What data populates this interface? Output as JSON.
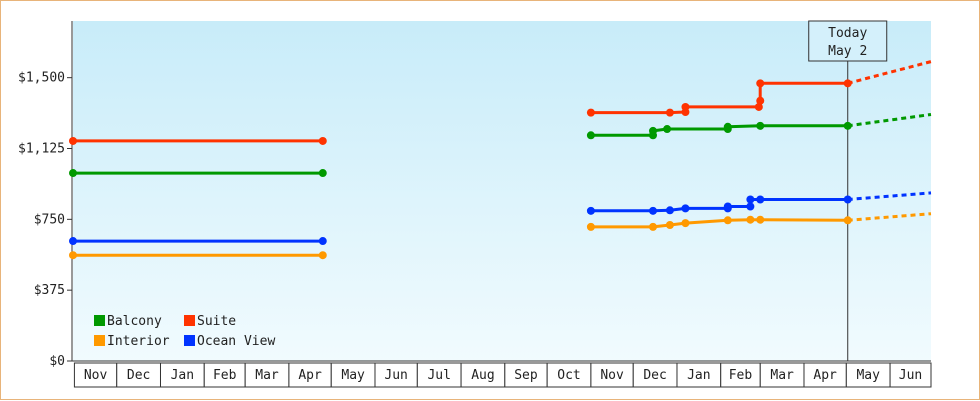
{
  "chart_data": {
    "type": "line",
    "x_unit": "date",
    "ylim": [
      0,
      1800
    ],
    "y_ticks": [
      {
        "value": 0,
        "label": "$0"
      },
      {
        "value": 375,
        "label": "$375"
      },
      {
        "value": 750,
        "label": "$750"
      },
      {
        "value": 1125,
        "label": "$1,125"
      },
      {
        "value": 1500,
        "label": "$1,500"
      }
    ],
    "x_range": [
      "2023-10-31",
      "2025-06-30"
    ],
    "months": [
      {
        "label": "Nov",
        "start": "2023-11-01",
        "end": "2023-12-01"
      },
      {
        "label": "Dec",
        "start": "2023-12-01",
        "end": "2024-01-01"
      },
      {
        "label": "Jan",
        "start": "2024-01-01",
        "end": "2024-02-01"
      },
      {
        "label": "Feb",
        "start": "2024-02-01",
        "end": "2024-03-01"
      },
      {
        "label": "Mar",
        "start": "2024-03-01",
        "end": "2024-04-01"
      },
      {
        "label": "Apr",
        "start": "2024-04-01",
        "end": "2024-05-01"
      },
      {
        "label": "May",
        "start": "2024-05-01",
        "end": "2024-06-01"
      },
      {
        "label": "Jun",
        "start": "2024-06-01",
        "end": "2024-07-01"
      },
      {
        "label": "Jul",
        "start": "2024-07-01",
        "end": "2024-08-01"
      },
      {
        "label": "Aug",
        "start": "2024-08-01",
        "end": "2024-09-01"
      },
      {
        "label": "Sep",
        "start": "2024-09-01",
        "end": "2024-10-01"
      },
      {
        "label": "Oct",
        "start": "2024-10-01",
        "end": "2024-11-01"
      },
      {
        "label": "Nov",
        "start": "2024-11-01",
        "end": "2024-12-01"
      },
      {
        "label": "Dec",
        "start": "2024-12-01",
        "end": "2025-01-01"
      },
      {
        "label": "Jan",
        "start": "2025-01-01",
        "end": "2025-02-01"
      },
      {
        "label": "Feb",
        "start": "2025-02-01",
        "end": "2025-03-01"
      },
      {
        "label": "Mar",
        "start": "2025-03-01",
        "end": "2025-04-01"
      },
      {
        "label": "Apr",
        "start": "2025-04-01",
        "end": "2025-05-01"
      },
      {
        "label": "May",
        "start": "2025-05-01",
        "end": "2025-06-01"
      },
      {
        "label": "Jun",
        "start": "2025-06-01",
        "end": "2025-07-01"
      }
    ],
    "today": {
      "line1": "Today",
      "line2": "May 2",
      "date": "2025-05-02"
    },
    "series": [
      {
        "name": "Suite",
        "color": "#ff3300",
        "segments": [
          [
            [
              "2023-10-31",
              1165
            ],
            [
              "2024-04-25",
              1165
            ]
          ],
          [
            [
              "2024-11-01",
              1315
            ],
            [
              "2024-12-27",
              1315
            ],
            [
              "2025-01-07",
              1318
            ],
            [
              "2025-01-07",
              1345
            ],
            [
              "2025-02-28",
              1345
            ],
            [
              "2025-03-01",
              1378
            ],
            [
              "2025-03-01",
              1470
            ],
            [
              "2025-05-02",
              1470
            ]
          ]
        ],
        "projection": [
          [
            "2025-05-02",
            1470
          ],
          [
            "2025-06-30",
            1585
          ]
        ]
      },
      {
        "name": "Balcony",
        "color": "#009900",
        "segments": [
          [
            [
              "2023-10-31",
              995
            ],
            [
              "2024-04-25",
              995
            ]
          ],
          [
            [
              "2024-11-01",
              1195
            ],
            [
              "2024-12-15",
              1195
            ],
            [
              "2024-12-15",
              1218
            ],
            [
              "2024-12-25",
              1228
            ],
            [
              "2025-02-06",
              1228
            ],
            [
              "2025-02-06",
              1240
            ],
            [
              "2025-03-01",
              1245
            ],
            [
              "2025-05-02",
              1245
            ]
          ]
        ],
        "projection": [
          [
            "2025-05-02",
            1245
          ],
          [
            "2025-06-30",
            1305
          ]
        ]
      },
      {
        "name": "Ocean View",
        "color": "#0033ff",
        "segments": [
          [
            [
              "2023-10-31",
              635
            ],
            [
              "2024-04-25",
              635
            ]
          ],
          [
            [
              "2024-11-01",
              795
            ],
            [
              "2024-12-15",
              795
            ],
            [
              "2024-12-27",
              798
            ],
            [
              "2025-01-07",
              808
            ],
            [
              "2025-02-06",
              808
            ],
            [
              "2025-02-06",
              818
            ],
            [
              "2025-02-22",
              818
            ],
            [
              "2025-02-22",
              855
            ],
            [
              "2025-03-01",
              855
            ],
            [
              "2025-05-02",
              855
            ]
          ]
        ],
        "projection": [
          [
            "2025-05-02",
            855
          ],
          [
            "2025-06-30",
            890
          ]
        ]
      },
      {
        "name": "Interior",
        "color": "#ff9900",
        "segments": [
          [
            [
              "2023-10-31",
              560
            ],
            [
              "2024-04-25",
              560
            ]
          ],
          [
            [
              "2024-11-01",
              710
            ],
            [
              "2024-12-15",
              710
            ],
            [
              "2024-12-27",
              720
            ],
            [
              "2025-01-07",
              730
            ],
            [
              "2025-02-06",
              745
            ],
            [
              "2025-02-22",
              748
            ],
            [
              "2025-03-01",
              748
            ],
            [
              "2025-05-02",
              745
            ]
          ]
        ],
        "projection": [
          [
            "2025-05-02",
            745
          ],
          [
            "2025-06-30",
            780
          ]
        ]
      }
    ],
    "legend": {
      "placement": "bottom-left",
      "entries": [
        {
          "name": "Balcony",
          "color": "#009900"
        },
        {
          "name": "Suite",
          "color": "#ff3300"
        },
        {
          "name": "Interior",
          "color": "#ff9900"
        },
        {
          "name": "Ocean View",
          "color": "#0033ff"
        }
      ]
    },
    "background": {
      "top_color": "#c8ecf9",
      "bottom_color": "#f1fbfe"
    }
  }
}
